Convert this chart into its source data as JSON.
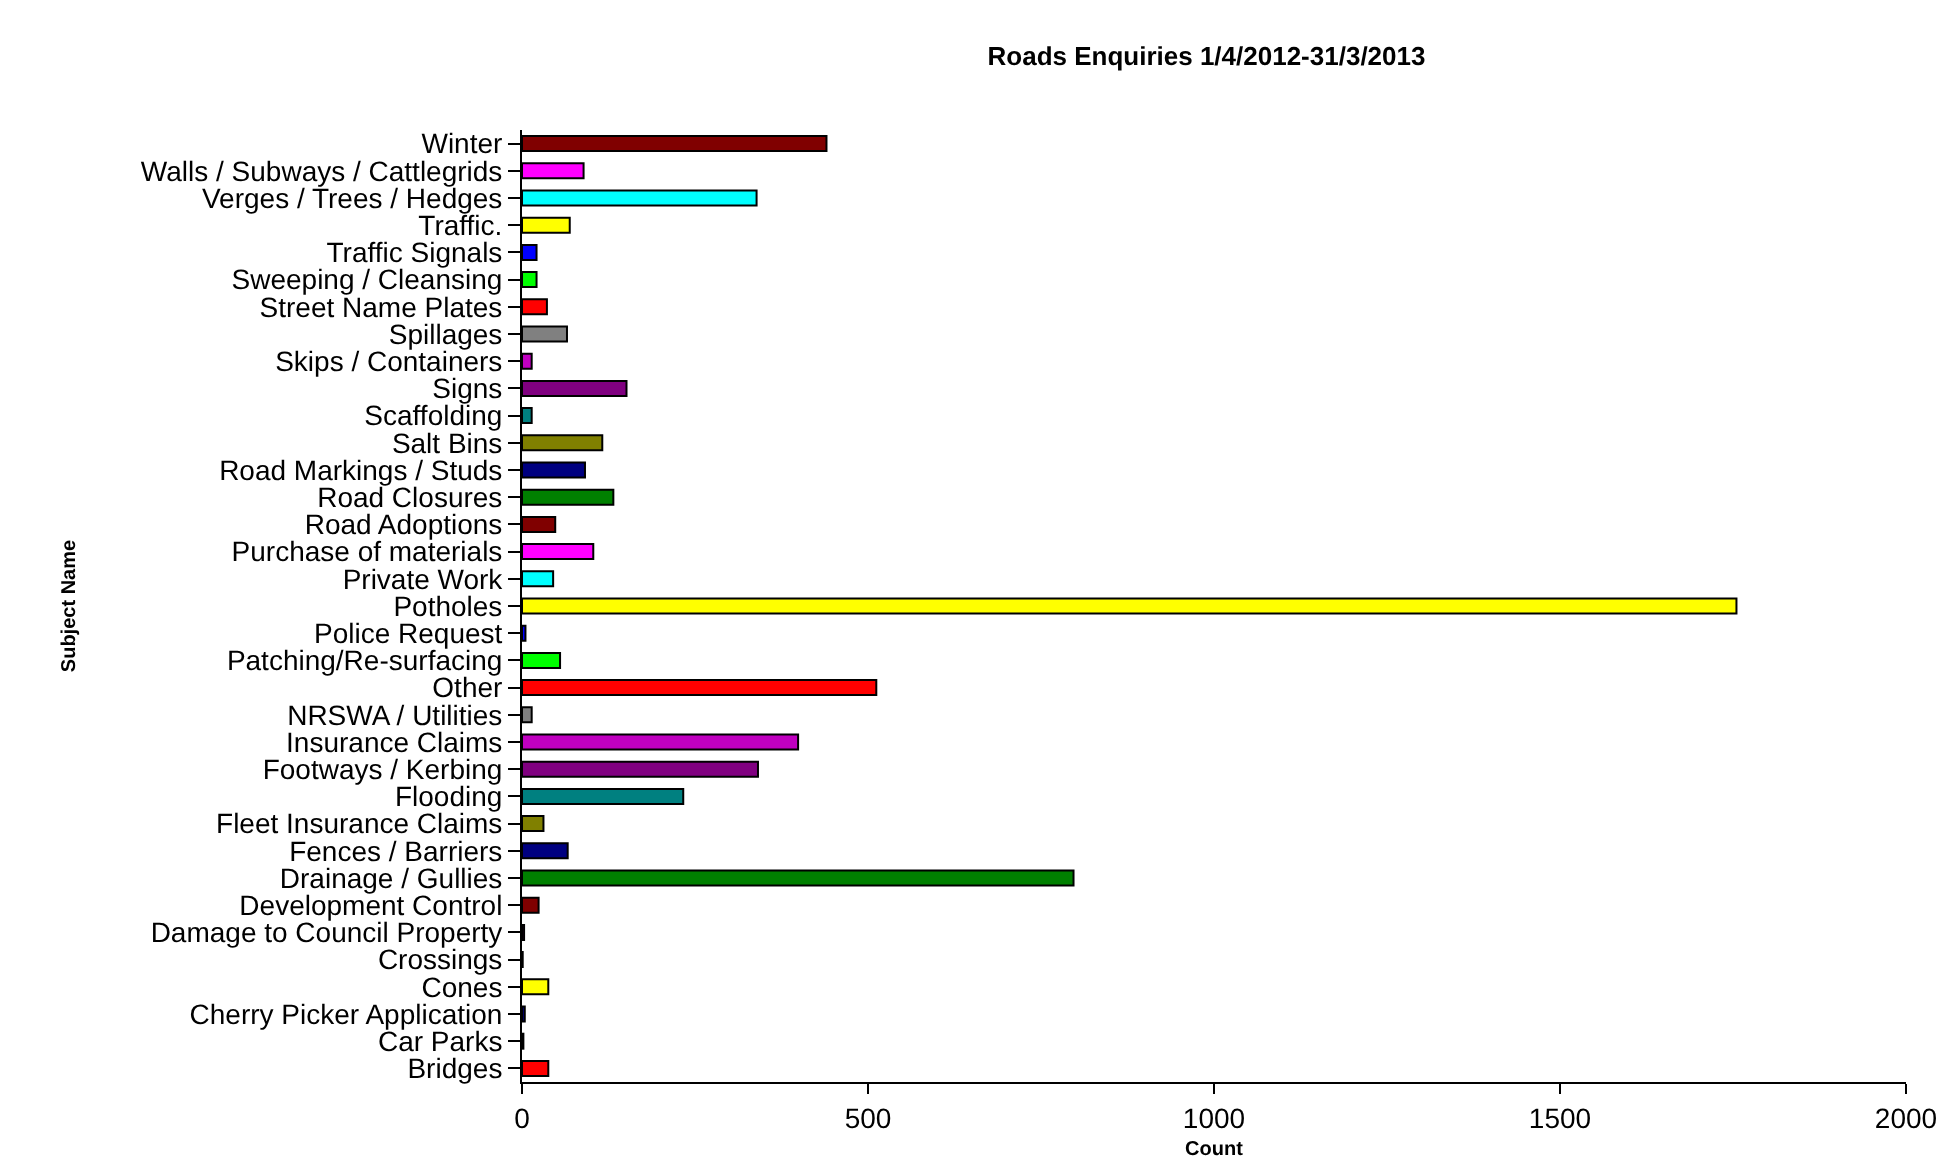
{
  "chart_data": {
    "type": "bar",
    "orientation": "horizontal",
    "title": "Roads Enquiries 1/4/2012-31/3/2013",
    "xlabel": "Count",
    "ylabel": "Subject Name",
    "categories": [
      "Winter",
      "Walls / Subways / Cattlegrids",
      "Verges / Trees / Hedges",
      "Traffic.",
      "Traffic Signals",
      "Sweeping / Cleansing",
      "Street Name Plates",
      "Spillages",
      "Skips / Containers",
      "Signs",
      "Scaffolding",
      "Salt Bins",
      "Road Markings / Studs",
      "Road Closures",
      "Road Adoptions",
      "Purchase of materials",
      "Private Work",
      "Potholes",
      "Police Request",
      "Patching/Re-surfacing",
      "Other",
      "NRSWA / Utilities",
      "Insurance Claims",
      "Footways / Kerbing",
      "Flooding",
      "Fleet Insurance Claims",
      "Fences / Barriers",
      "Drainage / Gullies",
      "Development Control",
      "Damage to Council Property",
      "Crossings",
      "Cones",
      "Cherry Picker Application",
      "Car Parks",
      "Bridges"
    ],
    "values": [
      440,
      89,
      339,
      69,
      21,
      21,
      36,
      65,
      14,
      151,
      14,
      116,
      91,
      132,
      48,
      103,
      45,
      1755,
      5,
      55,
      512,
      14,
      399,
      341,
      233,
      31,
      66,
      797,
      24,
      3,
      1,
      38,
      4,
      2,
      38
    ],
    "colors": [
      "#800000",
      "#ff00ff",
      "#00ffff",
      "#ffff00",
      "#0000ff",
      "#00ff00",
      "#ff0000",
      "#808080",
      "#c000c0",
      "#800080",
      "#008080",
      "#808000",
      "#000080",
      "#008000",
      "#800000",
      "#ff00ff",
      "#00ffff",
      "#ffff00",
      "#0000ff",
      "#00ff00",
      "#ff0000",
      "#808080",
      "#c000c0",
      "#800080",
      "#008080",
      "#808000",
      "#000080",
      "#008000",
      "#800000",
      "#800080",
      "#008080",
      "#ffff00",
      "#000080",
      "#008000",
      "#ff0000"
    ],
    "xlim": [
      0,
      2000
    ],
    "xticks": [
      0,
      500,
      1000,
      1500,
      2000
    ]
  }
}
